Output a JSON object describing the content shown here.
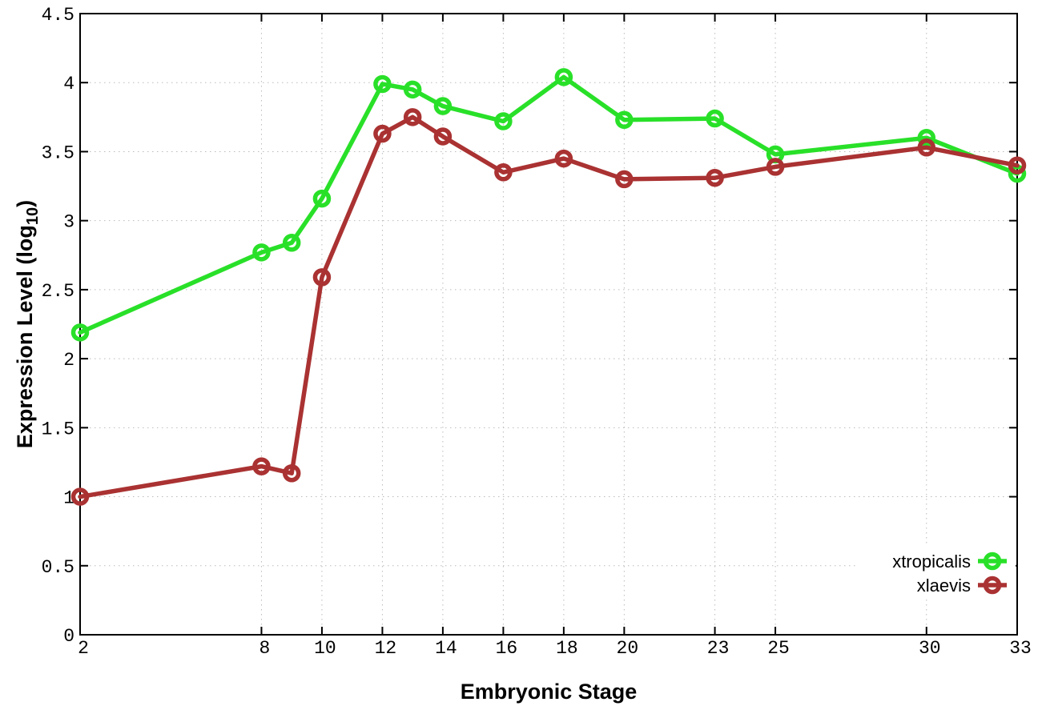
{
  "chart_data": {
    "type": "line",
    "title": "",
    "xlabel": "Embryonic Stage",
    "ylabel": "Expression Level (log10)",
    "ylabel_parts": {
      "pre": "Expression Level (log",
      "sub": "10",
      "post": ")"
    },
    "xlim": [
      2,
      33
    ],
    "ylim": [
      0,
      4.5
    ],
    "grid": true,
    "grid_style": "dotted",
    "legend_position": "inside-bottom-right",
    "axis_color": "#000000",
    "grid_color": "#bbbbbb",
    "xticks": [
      {
        "value": 2,
        "label": "2"
      },
      {
        "value": 8,
        "label": "8"
      },
      {
        "value": 10,
        "label": "10"
      },
      {
        "value": 12,
        "label": "12"
      },
      {
        "value": 14,
        "label": "14"
      },
      {
        "value": 16,
        "label": "16"
      },
      {
        "value": 18,
        "label": "18"
      },
      {
        "value": 20,
        "label": "20"
      },
      {
        "value": 23,
        "label": "23"
      },
      {
        "value": 25,
        "label": "25"
      },
      {
        "value": 30,
        "label": "30"
      },
      {
        "value": 33,
        "label": "33"
      }
    ],
    "yticks": [
      {
        "value": 0,
        "label": "0"
      },
      {
        "value": 0.5,
        "label": "0.5"
      },
      {
        "value": 1,
        "label": "1"
      },
      {
        "value": 1.5,
        "label": "1.5"
      },
      {
        "value": 2,
        "label": "2"
      },
      {
        "value": 2.5,
        "label": "2.5"
      },
      {
        "value": 3,
        "label": "3"
      },
      {
        "value": 3.5,
        "label": "3.5"
      },
      {
        "value": 4,
        "label": "4"
      },
      {
        "value": 4.5,
        "label": "4.5"
      }
    ],
    "x": [
      2,
      8,
      9,
      10,
      12,
      13,
      14,
      16,
      18,
      20,
      23,
      25,
      30,
      33
    ],
    "series": [
      {
        "name": "xtropicalis",
        "color": "#29e029",
        "marker": "open-circle",
        "values": [
          2.19,
          2.77,
          2.84,
          3.16,
          3.99,
          3.95,
          3.83,
          3.72,
          4.04,
          3.73,
          3.74,
          3.48,
          3.6,
          3.34
        ]
      },
      {
        "name": "xlaevis",
        "color": "#aa3232",
        "marker": "open-circle",
        "values": [
          1.0,
          1.22,
          1.17,
          2.59,
          3.63,
          3.75,
          3.61,
          3.35,
          3.45,
          3.3,
          3.31,
          3.39,
          3.53,
          3.4
        ]
      }
    ]
  }
}
